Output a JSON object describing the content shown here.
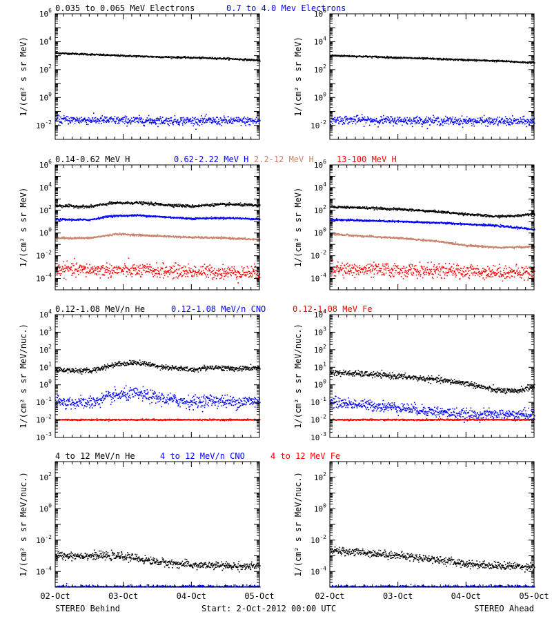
{
  "colors": {
    "black": "#000000",
    "blue": "#0000ff",
    "tan": "#c8836a",
    "red": "#ff0000"
  },
  "footer": {
    "left": "STEREO Behind",
    "center": "Start:  2-Oct-2012 00:00 UTC",
    "right": "STEREO Ahead"
  },
  "chart_data": [
    {
      "type": "scatter",
      "log_y": true,
      "ylim": [
        0.001,
        1000000
      ],
      "ytick_exponents": [
        -2,
        0,
        2,
        4,
        6
      ],
      "ylabel": "1/(cm² s sr MeV)",
      "x_ticks": [
        "02-Oct",
        "03-Oct",
        "04-Oct",
        "05-Oct"
      ],
      "legend": [
        {
          "text": "0.035 to 0.065 MeV Electrons",
          "color": "black"
        },
        {
          "text": "0.7 to 4.0 Mev Electrons",
          "color": "blue"
        }
      ],
      "behind": [
        {
          "name": "0.035 to 0.065 MeV Electrons",
          "color": "black",
          "x": [
            0,
            0.5,
            1,
            1.5,
            2,
            2.5,
            3
          ],
          "y": [
            1500,
            1200,
            950,
            800,
            700,
            600,
            450
          ],
          "noise": 0.03
        },
        {
          "name": "0.7 to 4.0 Mev Electrons",
          "color": "blue",
          "x": [
            0,
            1,
            2,
            3
          ],
          "y": [
            0.025,
            0.022,
            0.021,
            0.02
          ],
          "noise": 0.15
        }
      ],
      "ahead": [
        {
          "name": "0.035 to 0.065 MeV Electrons",
          "color": "black",
          "x": [
            0,
            0.5,
            1,
            1.5,
            2,
            2.5,
            3
          ],
          "y": [
            1000,
            850,
            700,
            580,
            480,
            400,
            300
          ],
          "noise": 0.03
        },
        {
          "name": "0.7 to 4.0 Mev Electrons",
          "color": "blue",
          "x": [
            0,
            1,
            2,
            3
          ],
          "y": [
            0.025,
            0.022,
            0.02,
            0.018
          ],
          "noise": 0.15
        }
      ]
    },
    {
      "type": "scatter",
      "log_y": true,
      "ylim": [
        1e-05,
        1000000
      ],
      "ytick_exponents": [
        -4,
        -2,
        0,
        2,
        4,
        6
      ],
      "ylabel": "1/(cm² s sr MeV)",
      "x_ticks": [
        "02-Oct",
        "03-Oct",
        "04-Oct",
        "05-Oct"
      ],
      "legend": [
        {
          "text": "0.14-0.62 MeV H",
          "color": "black"
        },
        {
          "text": "0.62-2.22 MeV H",
          "color": "blue"
        },
        {
          "text": "2.2-12 MeV H",
          "color": "tan"
        },
        {
          "text": "13-100 MeV H",
          "color": "red"
        }
      ],
      "behind": [
        {
          "name": "0.14-0.62 MeV H",
          "color": "black",
          "x": [
            0,
            0.5,
            0.8,
            1.2,
            1.6,
            2.0,
            2.3,
            2.6,
            3
          ],
          "y": [
            250,
            200,
            400,
            450,
            300,
            220,
            300,
            320,
            250
          ],
          "noise": 0.06
        },
        {
          "name": "0.62-2.22 MeV H",
          "color": "blue",
          "x": [
            0,
            0.5,
            0.8,
            1.2,
            1.6,
            2.0,
            2.3,
            2.6,
            3
          ],
          "y": [
            15,
            14,
            30,
            35,
            25,
            18,
            20,
            20,
            16
          ],
          "noise": 0.04
        },
        {
          "name": "2.2-12 MeV H",
          "color": "tan",
          "x": [
            0,
            0.5,
            0.9,
            1.3,
            2,
            2.5,
            3
          ],
          "y": [
            0.35,
            0.35,
            0.8,
            0.6,
            0.4,
            0.35,
            0.25
          ],
          "noise": 0.04
        },
        {
          "name": "13-100 MeV H",
          "color": "red",
          "x": [
            0,
            1,
            2,
            3
          ],
          "y": [
            0.0006,
            0.0005,
            0.0004,
            0.0003
          ],
          "noise": 0.3
        }
      ],
      "ahead": [
        {
          "name": "0.14-0.62 MeV H",
          "color": "black",
          "x": [
            0,
            0.5,
            1,
            1.5,
            2,
            2.4,
            2.7,
            3
          ],
          "y": [
            200,
            160,
            120,
            80,
            45,
            28,
            30,
            50
          ],
          "noise": 0.05
        },
        {
          "name": "0.62-2.22 MeV H",
          "color": "blue",
          "x": [
            0,
            0.5,
            1,
            1.5,
            2,
            2.5,
            3
          ],
          "y": [
            15,
            12,
            10,
            8,
            6,
            4,
            2
          ],
          "noise": 0.04
        },
        {
          "name": "2.2-12 MeV H",
          "color": "tan",
          "x": [
            0,
            0.5,
            1,
            1.5,
            2,
            2.5,
            3
          ],
          "y": [
            0.8,
            0.5,
            0.35,
            0.2,
            0.08,
            0.05,
            0.06
          ],
          "noise": 0.04
        },
        {
          "name": "13-100 MeV H",
          "color": "red",
          "x": [
            0,
            1,
            2,
            3
          ],
          "y": [
            0.0006,
            0.0005,
            0.0004,
            0.0003
          ],
          "noise": 0.3
        }
      ]
    },
    {
      "type": "scatter",
      "log_y": true,
      "ylim": [
        0.001,
        10000
      ],
      "ytick_exponents": [
        -3,
        -2,
        -1,
        0,
        1,
        2,
        3,
        4
      ],
      "ylabel": "1/(cm² s sr MeV/nuc.)",
      "x_ticks": [
        "02-Oct",
        "03-Oct",
        "04-Oct",
        "05-Oct"
      ],
      "legend": [
        {
          "text": "0.12-1.08 MeV/n He",
          "color": "black"
        },
        {
          "text": "0.12-1.08 MeV/n CNO",
          "color": "blue"
        },
        {
          "text": "0.12-1.08 MeV Fe",
          "color": "red"
        }
      ],
      "behind": [
        {
          "name": "0.12-1.08 MeV/n He",
          "color": "black",
          "x": [
            0,
            0.5,
            0.9,
            1.2,
            1.6,
            2.0,
            2.3,
            2.6,
            3
          ],
          "y": [
            7,
            6,
            15,
            18,
            10,
            7,
            10,
            8,
            9
          ],
          "noise": 0.07
        },
        {
          "name": "0.12-1.08 MeV/n CNO",
          "color": "blue",
          "x": [
            0,
            0.5,
            0.9,
            1.2,
            1.6,
            2.0,
            2.3,
            2.6,
            3
          ],
          "y": [
            0.1,
            0.09,
            0.25,
            0.3,
            0.15,
            0.1,
            0.13,
            0.1,
            0.12
          ],
          "noise": 0.18
        },
        {
          "name": "0.12-1.08 MeV Fe",
          "color": "red",
          "x": [
            0,
            3
          ],
          "y": [
            0.01,
            0.01
          ],
          "noise": 0.02
        }
      ],
      "ahead": [
        {
          "name": "0.12-1.08 MeV/n He",
          "color": "black",
          "x": [
            0,
            0.5,
            1,
            1.5,
            2,
            2.4,
            2.7,
            3
          ],
          "y": [
            5,
            4,
            3,
            2,
            1.2,
            0.5,
            0.4,
            0.8
          ],
          "noise": 0.08
        },
        {
          "name": "0.12-1.08 MeV/n CNO",
          "color": "blue",
          "x": [
            0,
            0.5,
            1,
            1.5,
            2,
            3
          ],
          "y": [
            0.1,
            0.07,
            0.05,
            0.03,
            0.02,
            0.02
          ],
          "noise": 0.15
        },
        {
          "name": "0.12-1.08 MeV Fe",
          "color": "red",
          "x": [
            0,
            3
          ],
          "y": [
            0.01,
            0.01
          ],
          "noise": 0.02
        }
      ]
    },
    {
      "type": "scatter",
      "log_y": true,
      "ylim": [
        1e-05,
        1000
      ],
      "ytick_exponents": [
        -4,
        -2,
        0,
        2
      ],
      "ylabel": "1/(cm² s sr MeV/nuc.)",
      "x_ticks": [
        "02-Oct",
        "03-Oct",
        "04-Oct",
        "05-Oct"
      ],
      "legend": [
        {
          "text": "4 to 12 MeV/n He",
          "color": "black"
        },
        {
          "text": "4 to 12 MeV/n CNO",
          "color": "blue"
        },
        {
          "text": "4 to 12 MeV Fe",
          "color": "red"
        }
      ],
      "behind": [
        {
          "name": "4 to 12 MeV/n He",
          "color": "black",
          "x": [
            0,
            0.5,
            1,
            1.5,
            2,
            2.5,
            3
          ],
          "y": [
            0.001,
            0.001,
            0.0009,
            0.0004,
            0.00025,
            0.00022,
            0.0002
          ],
          "noise": 0.12
        },
        {
          "name": "4 to 12 MeV/n CNO",
          "color": "blue",
          "x": [
            0,
            3
          ],
          "y": [
            1e-05,
            1e-05
          ],
          "noise": 0.05
        }
      ],
      "ahead": [
        {
          "name": "4 to 12 MeV/n He",
          "color": "black",
          "x": [
            0,
            0.5,
            1,
            1.5,
            2,
            2.5,
            3
          ],
          "y": [
            0.002,
            0.0016,
            0.001,
            0.0006,
            0.0003,
            0.00022,
            0.0002
          ],
          "noise": 0.12
        },
        {
          "name": "4 to 12 MeV/n CNO",
          "color": "blue",
          "x": [
            0,
            3
          ],
          "y": [
            1e-05,
            1e-05
          ],
          "noise": 0.05
        }
      ]
    }
  ]
}
